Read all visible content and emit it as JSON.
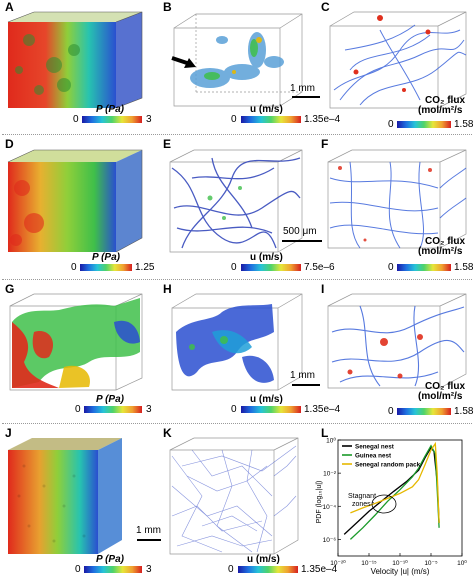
{
  "panels": {
    "A": "A",
    "B": "B",
    "C": "C",
    "D": "D",
    "E": "E",
    "F": "F",
    "G": "G",
    "H": "H",
    "I": "I",
    "J": "J",
    "K": "K",
    "L": "L"
  },
  "colorbars": {
    "row1": {
      "pressure": {
        "label": "P (Pa)",
        "min": "0",
        "max": "3"
      },
      "velocity": {
        "label": "u (m/s)",
        "min": "0",
        "max": "1.35e–4"
      },
      "flux": {
        "label_line1": "CO₂ flux",
        "label_line2": "(mol/m²/s",
        "min": "0",
        "max": "1.58"
      }
    },
    "row2": {
      "pressure": {
        "label": "P (Pa)",
        "min": "0",
        "max": "1.25"
      },
      "velocity": {
        "label": "u (m/s)",
        "min": "0",
        "max": "7.5e–6"
      },
      "flux": {
        "label_line1": "CO₂ flux",
        "label_line2": "(mol/m²/s",
        "min": "0",
        "max": "1.58"
      }
    },
    "row3": {
      "pressure": {
        "label": "P (Pa)",
        "min": "0",
        "max": "3"
      },
      "velocity": {
        "label": "u (m/s)",
        "min": "0",
        "max": "1.35e–4"
      },
      "flux": {
        "label_line1": "CO₂ flux",
        "label_line2": "(mol/m²/s",
        "min": "0",
        "max": "1.58"
      }
    },
    "row4": {
      "pressure": {
        "label": "P (Pa)",
        "min": "0",
        "max": "3"
      },
      "velocity": {
        "label": "u (m/s)",
        "min": "0",
        "max": "1.35e–4"
      }
    }
  },
  "scalebars": {
    "row1": "1 mm",
    "row2": "500 μm",
    "row3": "1 mm",
    "row4": "1 mm"
  },
  "colors": {
    "pressure_red": "#e02a1c",
    "pressure_green": "#3fbf4a",
    "pressure_blue": "#2a4fd0",
    "flux_blue": "#2f5ad8",
    "flux_red": "#e0301e"
  },
  "chart_data": {
    "type": "line",
    "xlabel": "Velocity |u| (m/s)",
    "ylabel": "PDF (log₁₀|u|)",
    "xscale": "log",
    "yscale": "log",
    "xlim": [
      1e-20,
      1
    ],
    "ylim": [
      1e-07,
      1
    ],
    "xticks": [
      "10⁻²⁰",
      "10⁻¹⁵",
      "10⁻¹⁰",
      "10⁻⁵",
      "10⁰"
    ],
    "yticks": [
      "10⁻⁶",
      "10⁻⁴",
      "10⁻²",
      "10⁰"
    ],
    "annotation": "Stagnant zones",
    "series": [
      {
        "name": "Senegal nest",
        "color": "#000000",
        "x": [
          1e-19,
          1e-17,
          1e-15,
          1e-13,
          1e-11,
          1e-09,
          1e-07,
          1e-06,
          1e-05,
          3e-05,
          0.0001,
          0.0002
        ],
        "y": [
          2e-06,
          1e-05,
          5e-05,
          0.0002,
          0.0008,
          0.003,
          0.015,
          0.08,
          0.35,
          0.2,
          0.003,
          1e-05
        ]
      },
      {
        "name": "Guinea nest",
        "color": "#1a9a2a",
        "x": [
          1e-18,
          1e-16,
          1e-14,
          1e-12,
          1e-10,
          1e-08,
          1e-07,
          1e-06,
          1e-05,
          5e-05,
          0.0001,
          0.0002
        ],
        "y": [
          1e-06,
          5e-06,
          3e-05,
          0.0002,
          0.001,
          0.006,
          0.02,
          0.1,
          0.45,
          0.15,
          0.001,
          5e-06
        ]
      },
      {
        "name": "Senegal random pack",
        "color": "#e6b800",
        "x": [
          1e-18,
          1e-16,
          1e-14,
          1e-12,
          1e-10,
          1e-08,
          1e-07,
          1e-06,
          1e-05,
          5e-05,
          0.0001,
          0.0002
        ],
        "y": [
          4e-05,
          8e-05,
          0.00015,
          0.0003,
          0.0006,
          0.0015,
          0.004,
          0.03,
          0.25,
          0.6,
          0.01,
          1e-05
        ]
      }
    ]
  }
}
